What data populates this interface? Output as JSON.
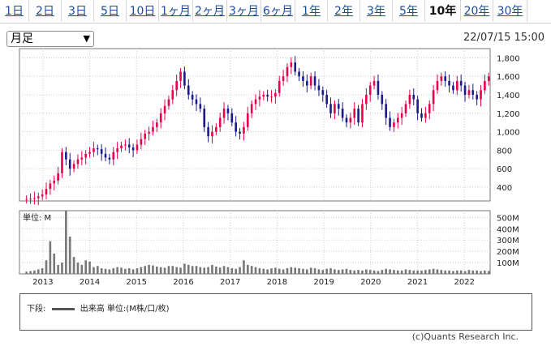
{
  "tabs": [
    "1日",
    "2日",
    "3日",
    "5日",
    "10日",
    "1ヶ月",
    "2ヶ月",
    "3ヶ月",
    "6ヶ月",
    "1年",
    "2年",
    "3年",
    "5年",
    "10年",
    "20年",
    "30年"
  ],
  "active_tab": "10年",
  "period_select": {
    "value": "月足"
  },
  "timestamp": "22/07/15 15:00",
  "volume_unit_label": "単位: M",
  "legend_prefix": "下段:",
  "legend_text": "出来高 単位:(M株/口/枚)",
  "copyright": "(c)Quants Research Inc.",
  "colors": {
    "up": "#e8004a",
    "down": "#1a1a8c",
    "volume": "#777777",
    "grid": "#cccccc"
  },
  "chart_data": [
    {
      "type": "candlestick",
      "ylim": [
        250,
        1900
      ],
      "yticks": [
        "400",
        "600",
        "800",
        "1,000",
        "1,200",
        "1,400",
        "1,600",
        "1,800"
      ],
      "ytick_values": [
        400,
        600,
        800,
        1000,
        1200,
        1400,
        1600,
        1800
      ],
      "x_range": [
        2012.5,
        2022.55
      ],
      "xticks": [
        "2013",
        "2014",
        "2015",
        "2016",
        "2017",
        "2018",
        "2019",
        "2020",
        "2021",
        "2022"
      ],
      "xtick_values": [
        2013,
        2014,
        2015,
        2016,
        2017,
        2018,
        2019,
        2020,
        2021,
        2022
      ],
      "close": [
        270,
        275,
        280,
        300,
        320,
        380,
        440,
        470,
        550,
        780,
        700,
        600,
        650,
        700,
        720,
        760,
        780,
        820,
        810,
        760,
        720,
        700,
        780,
        820,
        850,
        860,
        830,
        800,
        860,
        920,
        980,
        1000,
        1050,
        1100,
        1200,
        1280,
        1350,
        1450,
        1550,
        1650,
        1500,
        1400,
        1350,
        1300,
        1250,
        1050,
        950,
        1000,
        1050,
        1150,
        1250,
        1200,
        1100,
        1000,
        980,
        1050,
        1200,
        1300,
        1350,
        1380,
        1400,
        1380,
        1380,
        1420,
        1550,
        1600,
        1700,
        1750,
        1650,
        1600,
        1550,
        1500,
        1600,
        1500,
        1450,
        1400,
        1300,
        1200,
        1300,
        1250,
        1150,
        1100,
        1150,
        1250,
        1100,
        1300,
        1400,
        1500,
        1550,
        1400,
        1300,
        1150,
        1050,
        1100,
        1150,
        1200,
        1300,
        1400,
        1350,
        1200,
        1150,
        1200,
        1300,
        1450,
        1550,
        1600,
        1550,
        1500,
        1450,
        1550,
        1500,
        1400,
        1450,
        1400,
        1350,
        1450,
        1550,
        1600
      ]
    },
    {
      "type": "bar",
      "name": "出来高",
      "ylim": [
        0,
        560
      ],
      "yticks": [
        "100M",
        "200M",
        "300M",
        "400M",
        "500M"
      ],
      "ytick_values": [
        100,
        200,
        300,
        400,
        500
      ],
      "values": [
        20,
        25,
        30,
        40,
        50,
        120,
        290,
        180,
        80,
        100,
        560,
        330,
        150,
        100,
        80,
        120,
        110,
        60,
        70,
        50,
        45,
        40,
        50,
        60,
        55,
        45,
        50,
        40,
        50,
        60,
        70,
        80,
        75,
        65,
        60,
        55,
        70,
        70,
        60,
        55,
        90,
        80,
        70,
        70,
        60,
        55,
        60,
        80,
        65,
        55,
        70,
        60,
        50,
        45,
        60,
        120,
        80,
        70,
        60,
        50,
        45,
        40,
        50,
        55,
        45,
        40,
        50,
        60,
        55,
        50,
        45,
        40,
        55,
        50,
        40,
        35,
        45,
        50,
        40,
        35,
        40,
        45,
        35,
        30,
        35,
        30,
        40,
        35,
        30,
        25,
        35,
        45,
        40,
        35,
        30,
        30,
        40,
        35,
        30,
        30,
        30,
        35,
        40,
        45,
        40,
        35,
        30,
        30,
        25,
        30,
        30,
        25,
        35,
        30,
        30,
        25,
        30,
        25
      ]
    }
  ]
}
